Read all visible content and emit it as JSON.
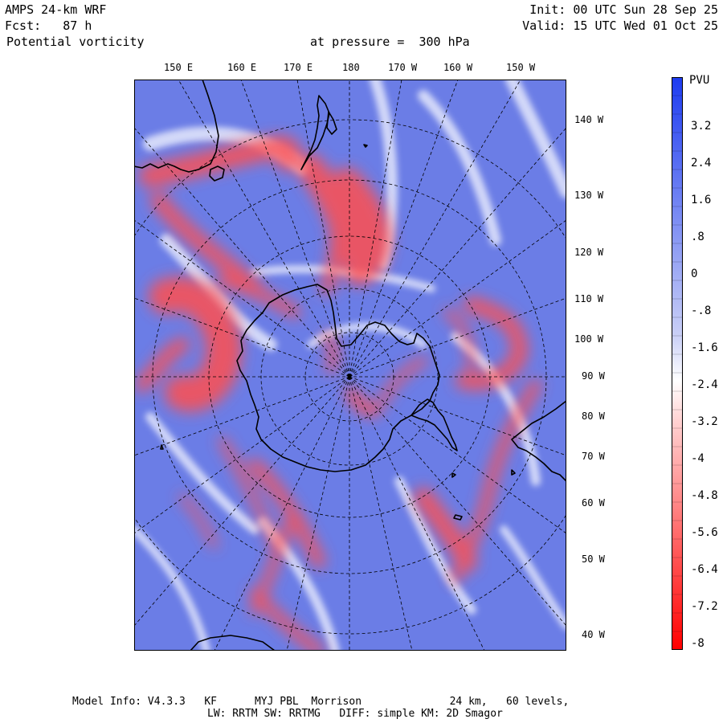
{
  "header": {
    "model": "AMPS 24-km WRF",
    "init": "Init: 00 UTC Sun 28 Sep 25",
    "forecast": "Fcst:   87 h",
    "valid": "Valid: 15 UTC Wed 01 Oct 25",
    "field": "Potential vorticity",
    "level": "at pressure =  300 hPa"
  },
  "map": {
    "projection": "south-polar stereographic",
    "top_lon_labels": [
      "150 E",
      "160 E",
      "170 E",
      "180",
      "170 W",
      "160 W",
      "150 W"
    ],
    "right_lon_labels": [
      "140 W",
      "130 W",
      "120 W",
      "110 W",
      "100 W",
      "90 W",
      "80 W",
      "70 W",
      "60 W",
      "50 W",
      "40 W"
    ],
    "colors": {
      "blue": "#6b7de6",
      "red": "#ff5050",
      "land": "#000000",
      "grid": "#000000"
    }
  },
  "colorbar": {
    "title": "PVU",
    "labels": [
      "3.2",
      "2.4",
      "1.6",
      ".8",
      "0",
      "-.8",
      "-1.6",
      "-2.4",
      "-3.2",
      "-4",
      "-4.8",
      "-5.6",
      "-6.4",
      "-7.2",
      "-8"
    ],
    "top_color": "#1e3cf0",
    "mid_color": "#ffffff",
    "bottom_color": "#ff0000"
  },
  "footer": {
    "line1": "Model Info: V4.3.3   KF      MYJ PBL  Morrison              24 km,   60 levels,",
    "line2": "LW: RRTM SW: RRTMG   DIFF: simple KM: 2D Smagor"
  }
}
